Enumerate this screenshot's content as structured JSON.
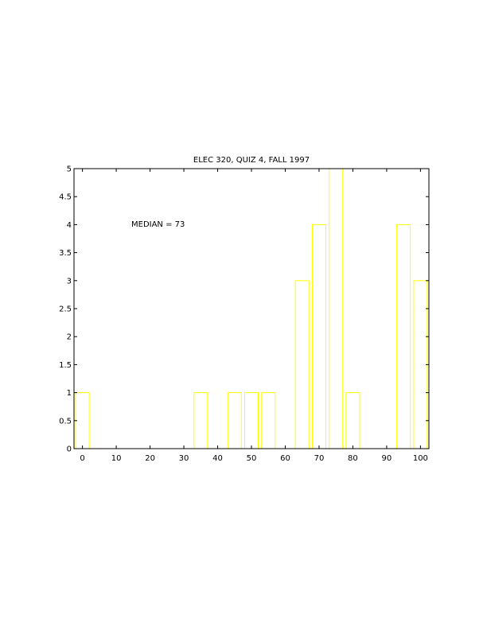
{
  "chart_data": {
    "type": "bar",
    "title": "ELEC 320, QUIZ 4, FALL 1997",
    "xlabel": "",
    "ylabel": "",
    "annotation": "MEDIAN = 73",
    "xlim": [
      -2.5,
      102.5
    ],
    "ylim": [
      0,
      5
    ],
    "xticks": [
      0,
      10,
      20,
      30,
      40,
      50,
      60,
      70,
      80,
      90,
      100
    ],
    "yticks": [
      0,
      0.5,
      1,
      1.5,
      2,
      2.5,
      3,
      3.5,
      4,
      4.5,
      5
    ],
    "bar_color": "#ffff00",
    "bar_style": "outline",
    "bin_centers": [
      0,
      35,
      45,
      50,
      55,
      65,
      70,
      75,
      80,
      95,
      100
    ],
    "bin_width": 4,
    "values": [
      1,
      1,
      1,
      1,
      1,
      3,
      4,
      5,
      1,
      4,
      3
    ]
  }
}
